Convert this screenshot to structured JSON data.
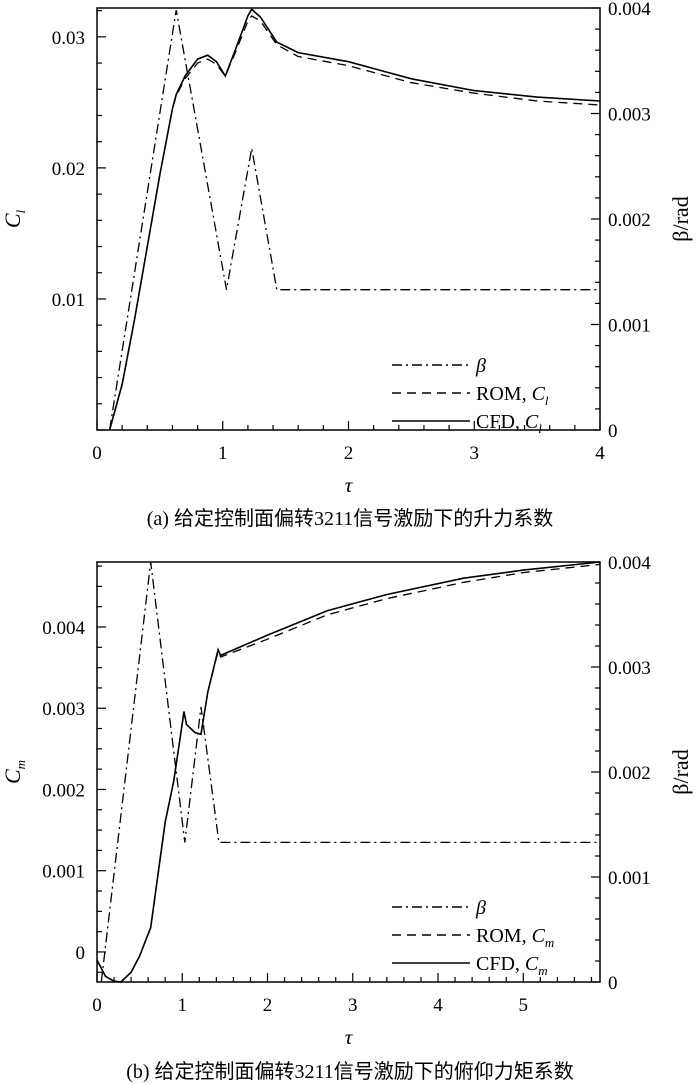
{
  "chart_data": [
    {
      "type": "line",
      "caption": "(a) 给定控制面偏转3211信号激励下的升力系数",
      "xlabel": "τ",
      "ylabel": "C",
      "ylabel_sub": "l",
      "y2label": "β/rad",
      "xlim": [
        0,
        4
      ],
      "ylim": [
        0,
        0.0322
      ],
      "y2lim": [
        0,
        0.004
      ],
      "xticks": [
        "0",
        "1",
        "2",
        "3",
        "4"
      ],
      "yticks": [
        "0.01",
        "0.02",
        "0.03"
      ],
      "y2ticks": [
        "0",
        "0.001",
        "0.002",
        "0.003",
        "0.004"
      ],
      "legend_position": "bottom-right",
      "legend": [
        {
          "label": "β",
          "sub": ""
        },
        {
          "label": "ROM, C",
          "sub": "l"
        },
        {
          "label": "CFD, C",
          "sub": "l"
        }
      ],
      "series": [
        {
          "name": "β",
          "axis": "right",
          "style": "dashdot",
          "x": [
            0.1,
            0.63,
            1.03,
            1.23,
            1.43,
            4.0
          ],
          "y": [
            0,
            0.00398,
            0.00133,
            0.00267,
            0.00133,
            0.00133
          ]
        },
        {
          "name": "ROM, Cl",
          "axis": "left",
          "style": "dashed",
          "x": [
            0.1,
            0.2,
            0.3,
            0.4,
            0.5,
            0.6,
            0.63,
            0.7,
            0.8,
            0.88,
            0.95,
            1.02,
            1.1,
            1.2,
            1.23,
            1.3,
            1.43,
            1.6,
            2.0,
            2.5,
            3.0,
            3.5,
            4.0
          ],
          "y": [
            0,
            0.0035,
            0.0085,
            0.014,
            0.0195,
            0.0245,
            0.0255,
            0.0268,
            0.028,
            0.0283,
            0.0279,
            0.027,
            0.0288,
            0.0312,
            0.0316,
            0.0312,
            0.0294,
            0.0285,
            0.0278,
            0.0265,
            0.0257,
            0.0251,
            0.0248
          ]
        },
        {
          "name": "CFD, Cl",
          "axis": "left",
          "style": "solid",
          "x": [
            0.1,
            0.2,
            0.3,
            0.4,
            0.5,
            0.6,
            0.63,
            0.7,
            0.8,
            0.88,
            0.95,
            1.02,
            1.1,
            1.2,
            1.23,
            1.3,
            1.43,
            1.6,
            2.0,
            2.5,
            3.0,
            3.5,
            4.0
          ],
          "y": [
            0,
            0.0035,
            0.0085,
            0.014,
            0.0195,
            0.0245,
            0.0256,
            0.027,
            0.0283,
            0.0286,
            0.0281,
            0.027,
            0.029,
            0.0316,
            0.0321,
            0.0315,
            0.0296,
            0.0288,
            0.0281,
            0.0268,
            0.0259,
            0.0254,
            0.0251
          ]
        }
      ]
    },
    {
      "type": "line",
      "caption": "(b) 给定控制面偏转3211信号激励下的俯仰力矩系数",
      "xlabel": "τ",
      "ylabel": "C",
      "ylabel_sub": "m",
      "y2label": "β/rad",
      "xlim": [
        0,
        5.9
      ],
      "ylim": [
        -0.00037,
        0.0048
      ],
      "y2lim": [
        0,
        0.004
      ],
      "xticks": [
        "0",
        "1",
        "2",
        "3",
        "4",
        "5"
      ],
      "yticks": [
        "0",
        "0.001",
        "0.002",
        "0.003",
        "0.004"
      ],
      "y2ticks": [
        "0",
        "0.001",
        "0.002",
        "0.003",
        "0.004"
      ],
      "legend_position": "bottom-right",
      "legend": [
        {
          "label": "β",
          "sub": ""
        },
        {
          "label": "ROM, C",
          "sub": "m"
        },
        {
          "label": "CFD, C",
          "sub": "m"
        }
      ],
      "series": [
        {
          "name": "β",
          "axis": "right",
          "style": "dashdot",
          "x": [
            0.05,
            0.63,
            1.03,
            1.22,
            1.43,
            5.9
          ],
          "y": [
            0,
            0.004,
            0.00133,
            0.00262,
            0.00133,
            0.00133
          ]
        },
        {
          "name": "ROM, Cm",
          "axis": "left",
          "style": "dashed",
          "x": [
            0,
            0.1,
            0.2,
            0.28,
            0.4,
            0.5,
            0.63,
            0.8,
            0.9,
            1.02,
            1.05,
            1.15,
            1.22,
            1.3,
            1.42,
            1.45,
            2.0,
            2.7,
            3.4,
            4.3,
            5.0,
            5.9
          ],
          "y": [
            -0.0001,
            -0.0003,
            -0.00036,
            -0.00037,
            -0.00025,
            -5e-05,
            0.0003,
            0.0016,
            0.0021,
            0.00295,
            0.0028,
            0.0027,
            0.00268,
            0.0032,
            0.0037,
            0.00363,
            0.00385,
            0.00415,
            0.00435,
            0.00455,
            0.00467,
            0.00477
          ]
        },
        {
          "name": "CFD, Cm",
          "axis": "left",
          "style": "solid",
          "x": [
            0,
            0.1,
            0.2,
            0.28,
            0.4,
            0.5,
            0.63,
            0.8,
            0.9,
            1.02,
            1.05,
            1.15,
            1.22,
            1.3,
            1.42,
            1.45,
            2.0,
            2.7,
            3.4,
            4.3,
            5.0,
            5.9
          ],
          "y": [
            -0.0001,
            -0.0003,
            -0.00036,
            -0.00037,
            -0.00025,
            -5e-05,
            0.0003,
            0.0016,
            0.0021,
            0.00296,
            0.0028,
            0.0027,
            0.00268,
            0.0032,
            0.00372,
            0.00365,
            0.0039,
            0.0042,
            0.0044,
            0.0046,
            0.0047,
            0.0048
          ]
        }
      ]
    }
  ]
}
